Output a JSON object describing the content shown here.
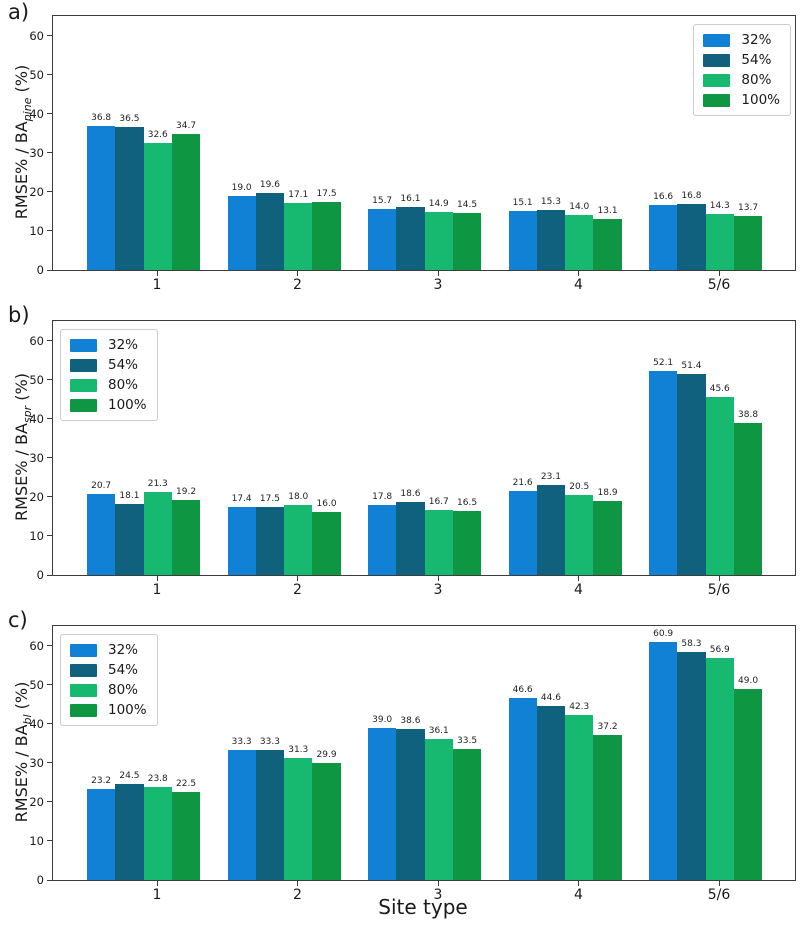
{
  "figure": {
    "xlabel": "Site type",
    "background_color": "#ffffff",
    "text_color": "#1a1a1a",
    "frame_color": "#3c3c3c",
    "legend_border_color": "#cccccc"
  },
  "legend": {
    "labels": [
      "32%",
      "54%",
      "80%",
      "100%"
    ],
    "colors": [
      "#1181d6",
      "#10617e",
      "#16b96f",
      "#0f9642"
    ]
  },
  "chart_data": [
    {
      "type": "bar",
      "panel_label": "a)",
      "ylabel": {
        "prefix": "RMSE% / BA",
        "sub": "pine",
        "suffix": " (%)"
      },
      "categories": [
        "1",
        "2",
        "3",
        "4",
        "5/6"
      ],
      "series": [
        {
          "name": "32%",
          "color": "#1181d6",
          "values": [
            36.8,
            19.0,
            15.7,
            15.1,
            16.6
          ]
        },
        {
          "name": "54%",
          "color": "#10617e",
          "values": [
            36.5,
            19.6,
            16.1,
            15.3,
            16.8
          ]
        },
        {
          "name": "80%",
          "color": "#16b96f",
          "values": [
            32.6,
            17.1,
            14.9,
            14.0,
            14.3
          ]
        },
        {
          "name": "100%",
          "color": "#0f9642",
          "values": [
            34.7,
            17.5,
            14.5,
            13.1,
            13.7
          ]
        }
      ],
      "yticks": [
        0,
        10,
        20,
        30,
        40,
        50,
        60
      ],
      "ylim": [
        0,
        65
      ],
      "bar_value_labels": true,
      "legend_loc": "upper right",
      "grid": false
    },
    {
      "type": "bar",
      "panel_label": "b)",
      "ylabel": {
        "prefix": "RMSE% / BA",
        "sub": "spr",
        "suffix": " (%)"
      },
      "categories": [
        "1",
        "2",
        "3",
        "4",
        "5/6"
      ],
      "series": [
        {
          "name": "32%",
          "color": "#1181d6",
          "values": [
            20.7,
            17.4,
            17.8,
            21.6,
            52.1
          ]
        },
        {
          "name": "54%",
          "color": "#10617e",
          "values": [
            18.1,
            17.5,
            18.6,
            23.1,
            51.4
          ]
        },
        {
          "name": "80%",
          "color": "#16b96f",
          "values": [
            21.3,
            18.0,
            16.7,
            20.5,
            45.6
          ]
        },
        {
          "name": "100%",
          "color": "#0f9642",
          "values": [
            19.2,
            16.0,
            16.5,
            18.9,
            38.8
          ]
        }
      ],
      "yticks": [
        0,
        10,
        20,
        30,
        40,
        50,
        60
      ],
      "ylim": [
        0,
        65
      ],
      "bar_value_labels": true,
      "legend_loc": "upper left",
      "grid": false
    },
    {
      "type": "bar",
      "panel_label": "c)",
      "ylabel": {
        "prefix": "RMSE% / BA",
        "sub": "bl",
        "suffix": " (%)"
      },
      "categories": [
        "1",
        "2",
        "3",
        "4",
        "5/6"
      ],
      "series": [
        {
          "name": "32%",
          "color": "#1181d6",
          "values": [
            23.2,
            33.3,
            39.0,
            46.6,
            60.9
          ]
        },
        {
          "name": "54%",
          "color": "#10617e",
          "values": [
            24.5,
            33.3,
            38.6,
            44.6,
            58.3
          ]
        },
        {
          "name": "80%",
          "color": "#16b96f",
          "values": [
            23.8,
            31.3,
            36.1,
            42.3,
            56.9
          ]
        },
        {
          "name": "100%",
          "color": "#0f9642",
          "values": [
            22.5,
            29.9,
            33.5,
            37.2,
            49.0
          ]
        }
      ],
      "yticks": [
        0,
        10,
        20,
        30,
        40,
        50,
        60
      ],
      "ylim": [
        0,
        65
      ],
      "bar_value_labels": true,
      "legend_loc": "upper left",
      "grid": false
    }
  ]
}
